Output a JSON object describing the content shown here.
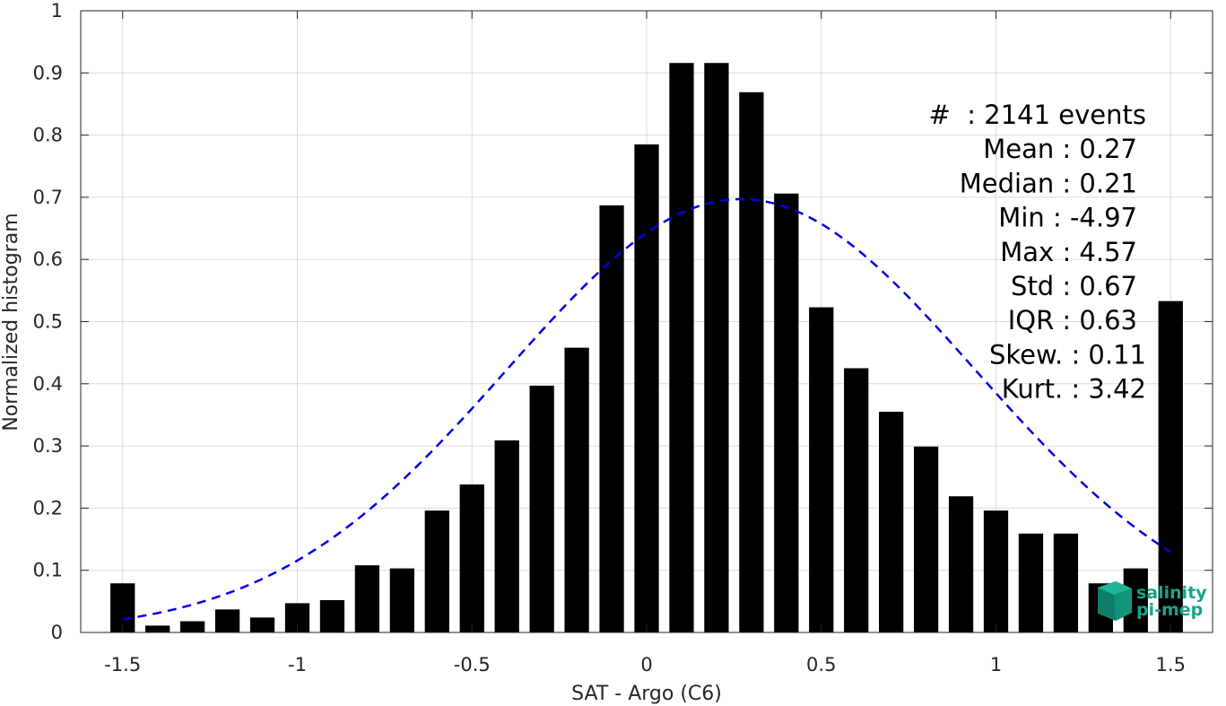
{
  "chart_data": {
    "type": "bar",
    "title": "",
    "xlabel": "SAT - Argo (C6)",
    "ylabel": "Normalized histogram",
    "xlim": [
      -1.62,
      1.62
    ],
    "ylim": [
      0,
      1
    ],
    "xticks": [
      -1.5,
      -1,
      -0.5,
      0,
      0.5,
      1,
      1.5
    ],
    "xtick_labels": [
      "-1.5",
      "-1",
      "-0.5",
      "0",
      "0.5",
      "1",
      "1.5"
    ],
    "yticks": [
      0,
      0.1,
      0.2,
      0.3,
      0.4,
      0.5,
      0.6,
      0.7,
      0.8,
      0.9,
      1
    ],
    "ytick_labels": [
      "0",
      "0.1",
      "0.2",
      "0.3",
      "0.4",
      "0.5",
      "0.6",
      "0.7",
      "0.8",
      "0.9",
      "1"
    ],
    "grid": true,
    "bin_width": 0.1,
    "bar_color": "#000000",
    "x": [
      -1.5,
      -1.4,
      -1.3,
      -1.2,
      -1.1,
      -1.0,
      -0.9,
      -0.8,
      -0.7,
      -0.6,
      -0.5,
      -0.4,
      -0.3,
      -0.2,
      -0.1,
      0.0,
      0.1,
      0.2,
      0.3,
      0.4,
      0.5,
      0.6,
      0.7,
      0.8,
      0.9,
      1.0,
      1.1,
      1.2,
      1.3,
      1.4,
      1.5
    ],
    "values": [
      0.079,
      0.011,
      0.018,
      0.037,
      0.024,
      0.047,
      0.052,
      0.108,
      0.103,
      0.196,
      0.238,
      0.309,
      0.397,
      0.458,
      0.687,
      0.785,
      0.916,
      0.916,
      0.869,
      0.706,
      0.523,
      0.425,
      0.355,
      0.299,
      0.219,
      0.196,
      0.159,
      0.159,
      0.079,
      0.103,
      0.533
    ],
    "fit_curve": {
      "style": "dashed",
      "color": "#0000e6",
      "mean": 0.27,
      "std": 0.67,
      "peak": 0.697,
      "x_range": [
        -1.5,
        1.5
      ]
    },
    "annotations": [
      "#  : 2141 events",
      "Mean : 0.27",
      "Median : 0.21",
      "Min : -4.97",
      "Max : 4.57",
      "Std : 0.67",
      "IQR : 0.63",
      "Skew. : 0.11",
      "Kurt. : 3.42"
    ]
  },
  "logo": {
    "line1": "salinity",
    "line2": "pi-mep",
    "color": "#16a58a"
  }
}
